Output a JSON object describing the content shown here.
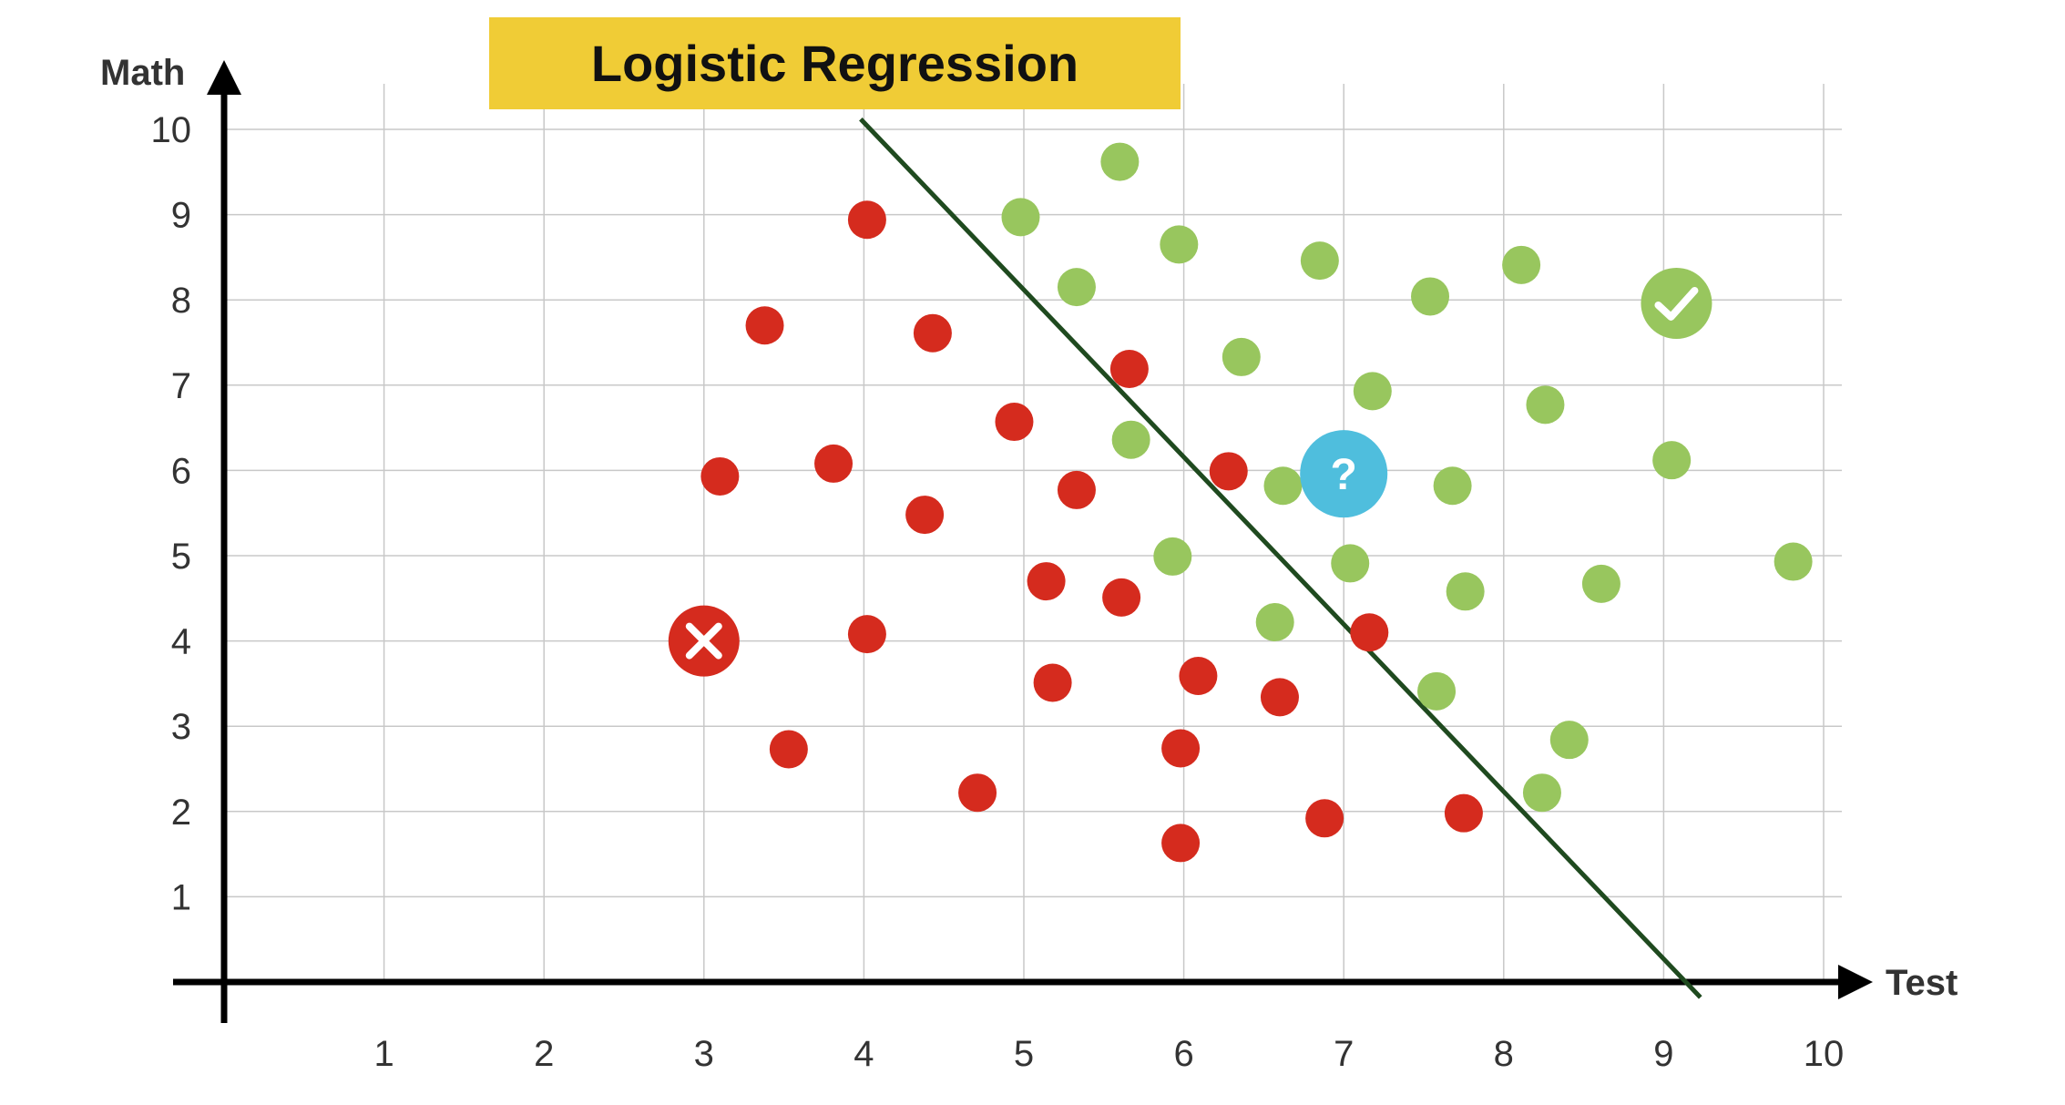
{
  "chart_data": {
    "type": "scatter",
    "title": "Logistic Regression",
    "xlabel": "Test",
    "ylabel": "Math",
    "xlim": [
      0,
      10
    ],
    "ylim": [
      0,
      10
    ],
    "x_ticks": [
      "1",
      "2",
      "3",
      "4",
      "5",
      "6",
      "7",
      "8",
      "9",
      "10"
    ],
    "y_ticks": [
      "1",
      "2",
      "3",
      "4",
      "5",
      "6",
      "7",
      "8",
      "9",
      "10"
    ],
    "grid": true,
    "colors": {
      "class_red": "#d52b1e",
      "class_green": "#98c65e",
      "query": "#4fbedd",
      "boundary": "#1f4a1f",
      "grid": "#c8c8c8",
      "axis": "#000000"
    },
    "series": [
      {
        "points": [
          [
            4.02,
            8.94
          ],
          [
            3.38,
            7.7
          ],
          [
            4.43,
            7.61
          ],
          [
            5.66,
            7.19
          ],
          [
            4.94,
            6.57
          ],
          [
            3.1,
            5.93
          ],
          [
            3.81,
            6.08
          ],
          [
            5.33,
            5.77
          ],
          [
            6.28,
            5.99
          ],
          [
            4.38,
            5.48
          ],
          [
            5.14,
            4.7
          ],
          [
            5.61,
            4.51
          ],
          [
            4.02,
            4.08
          ],
          [
            7.16,
            4.1
          ],
          [
            5.18,
            3.51
          ],
          [
            6.09,
            3.59
          ],
          [
            6.6,
            3.34
          ],
          [
            3.53,
            2.73
          ],
          [
            5.98,
            2.74
          ],
          [
            4.71,
            2.22
          ],
          [
            6.88,
            1.92
          ],
          [
            7.75,
            1.98
          ],
          [
            5.98,
            1.63
          ]
        ]
      },
      {
        "points": [
          [
            5.6,
            9.62
          ],
          [
            4.98,
            8.97
          ],
          [
            5.97,
            8.65
          ],
          [
            6.85,
            8.46
          ],
          [
            8.11,
            8.41
          ],
          [
            5.33,
            8.15
          ],
          [
            7.54,
            8.04
          ],
          [
            6.36,
            7.33
          ],
          [
            7.18,
            6.93
          ],
          [
            8.26,
            6.77
          ],
          [
            5.67,
            6.36
          ],
          [
            9.05,
            6.12
          ],
          [
            6.62,
            5.82
          ],
          [
            7.68,
            5.82
          ],
          [
            5.93,
            4.99
          ],
          [
            7.04,
            4.91
          ],
          [
            9.81,
            4.93
          ],
          [
            7.76,
            4.58
          ],
          [
            8.61,
            4.67
          ],
          [
            6.57,
            4.22
          ],
          [
            7.58,
            3.41
          ],
          [
            8.41,
            2.84
          ],
          [
            8.24,
            2.22
          ]
        ]
      }
    ],
    "annotations": [
      {
        "type": "query",
        "label": "?",
        "x": 7.0,
        "y": 5.96
      },
      {
        "type": "reject-marker",
        "icon": "x-icon",
        "x": 3.0,
        "y": 4.0
      },
      {
        "type": "accept-marker",
        "icon": "check-icon",
        "x": 9.08,
        "y": 7.96
      }
    ],
    "decision_boundary": {
      "x1": 3.98,
      "y1": 10.12,
      "x2": 9.23,
      "y2": -0.18
    }
  }
}
